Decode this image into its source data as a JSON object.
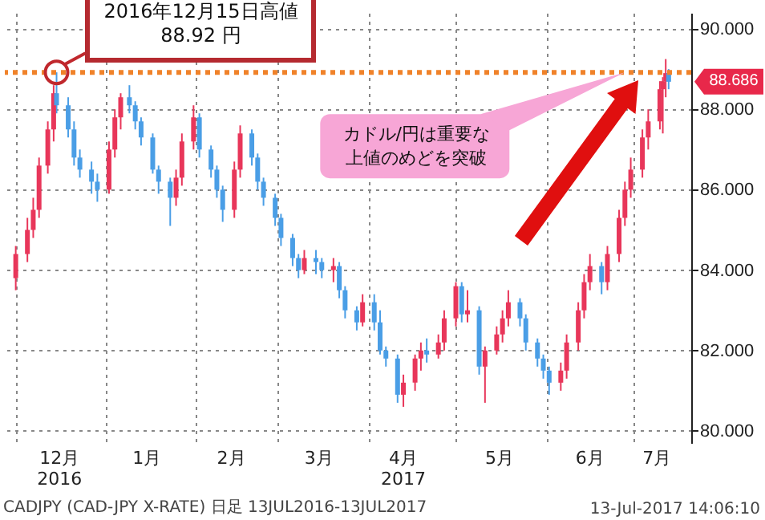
{
  "chart_data": {
    "type": "candlestick",
    "x": [
      "2016-12-01",
      "2016-12-05",
      "2016-12-07",
      "2016-12-09",
      "2016-12-12",
      "2016-12-14",
      "2016-12-15",
      "2016-12-19",
      "2016-12-21",
      "2016-12-23",
      "2016-12-27",
      "2016-12-29",
      "2017-01-02",
      "2017-01-04",
      "2017-01-06",
      "2017-01-09",
      "2017-01-11",
      "2017-01-13",
      "2017-01-17",
      "2017-01-19",
      "2017-01-23",
      "2017-01-25",
      "2017-01-27",
      "2017-01-31",
      "2017-02-02",
      "2017-02-06",
      "2017-02-08",
      "2017-02-10",
      "2017-02-14",
      "2017-02-16",
      "2017-02-20",
      "2017-02-22",
      "2017-02-24",
      "2017-02-28",
      "2017-03-02",
      "2017-03-06",
      "2017-03-08",
      "2017-03-10",
      "2017-03-14",
      "2017-03-16",
      "2017-03-20",
      "2017-03-22",
      "2017-03-24",
      "2017-03-28",
      "2017-03-30",
      "2017-04-03",
      "2017-04-05",
      "2017-04-07",
      "2017-04-11",
      "2017-04-13",
      "2017-04-17",
      "2017-04-19",
      "2017-04-21",
      "2017-04-25",
      "2017-04-27",
      "2017-05-01",
      "2017-05-03",
      "2017-05-05",
      "2017-05-09",
      "2017-05-11",
      "2017-05-15",
      "2017-05-17",
      "2017-05-19",
      "2017-05-23",
      "2017-05-25",
      "2017-05-29",
      "2017-05-31",
      "2017-06-02",
      "2017-06-06",
      "2017-06-08",
      "2017-06-12",
      "2017-06-14",
      "2017-06-16",
      "2017-06-20",
      "2017-06-22",
      "2017-06-26",
      "2017-06-28",
      "2017-06-30",
      "2017-07-04",
      "2017-07-06",
      "2017-07-10",
      "2017-07-11",
      "2017-07-12",
      "2017-07-13"
    ],
    "ohlc": [
      [
        83.8,
        84.6,
        83.5,
        84.4
      ],
      [
        84.4,
        85.3,
        84.2,
        85.0
      ],
      [
        85.0,
        85.8,
        84.8,
        85.5
      ],
      [
        85.5,
        86.8,
        85.3,
        86.6
      ],
      [
        86.6,
        87.7,
        86.4,
        87.5
      ],
      [
        87.5,
        88.6,
        87.2,
        88.4
      ],
      [
        88.4,
        88.92,
        87.9,
        88.1
      ],
      [
        88.1,
        88.3,
        87.3,
        87.5
      ],
      [
        87.5,
        87.7,
        86.6,
        86.8
      ],
      [
        86.8,
        87.0,
        86.3,
        86.5
      ],
      [
        86.5,
        86.7,
        85.9,
        86.2
      ],
      [
        86.2,
        86.4,
        85.7,
        86.0
      ],
      [
        86.0,
        87.2,
        85.9,
        87.0
      ],
      [
        87.0,
        88.0,
        86.8,
        87.8
      ],
      [
        87.8,
        88.4,
        87.5,
        88.3
      ],
      [
        88.3,
        88.6,
        87.9,
        88.1
      ],
      [
        88.1,
        88.2,
        87.5,
        87.7
      ],
      [
        87.7,
        87.8,
        87.1,
        87.3
      ],
      [
        87.3,
        87.4,
        86.4,
        86.5
      ],
      [
        86.5,
        86.6,
        85.9,
        86.2
      ],
      [
        86.2,
        86.3,
        85.1,
        85.8
      ],
      [
        85.8,
        86.5,
        85.6,
        86.3
      ],
      [
        86.3,
        87.4,
        86.1,
        87.2
      ],
      [
        87.2,
        88.1,
        87.0,
        87.8
      ],
      [
        87.8,
        87.9,
        86.8,
        87.0
      ],
      [
        87.0,
        87.1,
        86.3,
        86.5
      ],
      [
        86.5,
        86.6,
        85.8,
        86.0
      ],
      [
        86.0,
        86.1,
        85.2,
        85.5
      ],
      [
        85.5,
        86.7,
        85.3,
        86.5
      ],
      [
        86.5,
        87.6,
        86.3,
        87.4
      ],
      [
        87.4,
        87.5,
        86.6,
        86.8
      ],
      [
        86.8,
        86.9,
        86.0,
        86.2
      ],
      [
        86.2,
        86.3,
        85.6,
        85.8
      ],
      [
        85.8,
        85.9,
        85.1,
        85.3
      ],
      [
        85.3,
        85.4,
        84.6,
        84.8
      ],
      [
        84.8,
        84.9,
        84.1,
        84.3
      ],
      [
        84.3,
        84.4,
        83.8,
        84.0
      ],
      [
        84.0,
        84.5,
        83.9,
        84.3
      ],
      [
        84.3,
        84.5,
        83.9,
        84.2
      ],
      [
        84.2,
        84.3,
        83.8,
        84.0
      ],
      [
        84.0,
        84.3,
        83.7,
        84.1
      ],
      [
        84.1,
        84.2,
        83.3,
        83.5
      ],
      [
        83.5,
        83.6,
        82.8,
        83.0
      ],
      [
        83.0,
        83.1,
        82.5,
        82.7
      ],
      [
        82.7,
        83.4,
        82.6,
        83.2
      ],
      [
        83.2,
        83.4,
        82.5,
        82.7
      ],
      [
        82.7,
        83.0,
        81.9,
        82.0
      ],
      [
        82.0,
        82.1,
        81.6,
        81.8
      ],
      [
        81.8,
        81.9,
        80.7,
        80.9
      ],
      [
        80.9,
        81.4,
        80.6,
        81.2
      ],
      [
        81.2,
        81.9,
        81.0,
        81.8
      ],
      [
        81.8,
        82.2,
        81.5,
        82.0
      ],
      [
        82.0,
        82.3,
        81.7,
        81.9
      ],
      [
        81.9,
        82.4,
        81.8,
        82.2
      ],
      [
        82.2,
        83.0,
        82.0,
        82.8
      ],
      [
        82.8,
        83.7,
        82.6,
        83.6
      ],
      [
        83.6,
        83.7,
        82.7,
        82.9
      ],
      [
        82.9,
        83.5,
        82.7,
        83.0
      ],
      [
        83.0,
        83.1,
        81.4,
        81.6
      ],
      [
        81.6,
        82.1,
        80.7,
        82.0
      ],
      [
        82.0,
        82.6,
        81.9,
        82.4
      ],
      [
        82.4,
        83.0,
        82.2,
        82.8
      ],
      [
        82.8,
        83.5,
        82.6,
        83.2
      ],
      [
        83.2,
        83.3,
        82.6,
        82.8
      ],
      [
        82.8,
        82.9,
        82.0,
        82.2
      ],
      [
        82.2,
        82.3,
        81.6,
        81.8
      ],
      [
        81.8,
        81.9,
        81.3,
        81.5
      ],
      [
        81.5,
        81.6,
        80.9,
        81.2
      ],
      [
        81.2,
        81.7,
        81.0,
        81.5
      ],
      [
        81.5,
        82.4,
        81.3,
        82.2
      ],
      [
        82.2,
        83.2,
        82.0,
        83.0
      ],
      [
        83.0,
        83.9,
        82.8,
        83.7
      ],
      [
        83.7,
        84.4,
        83.5,
        84.1
      ],
      [
        84.1,
        84.2,
        83.4,
        83.7
      ],
      [
        83.7,
        84.6,
        83.5,
        84.4
      ],
      [
        84.4,
        85.5,
        84.2,
        85.3
      ],
      [
        85.3,
        86.2,
        85.1,
        86.0
      ],
      [
        86.0,
        86.8,
        85.8,
        86.5
      ],
      [
        86.5,
        87.5,
        86.3,
        87.3
      ],
      [
        87.3,
        88.0,
        87.0,
        87.7
      ],
      [
        87.7,
        88.7,
        87.5,
        88.5
      ],
      [
        88.5,
        88.8,
        87.4,
        88.7
      ],
      [
        88.7,
        89.25,
        88.3,
        88.9
      ],
      [
        88.9,
        89.0,
        88.5,
        88.686
      ]
    ],
    "colors": [
      "#e8365a",
      "#e8365a",
      "#e8365a",
      "#e8365a",
      "#e8365a",
      "#e8365a",
      "#4a9ee6",
      "#4a9ee6",
      "#4a9ee6",
      "#4a9ee6",
      "#4a9ee6",
      "#4a9ee6",
      "#e8365a",
      "#e8365a",
      "#e8365a",
      "#4a9ee6",
      "#4a9ee6",
      "#4a9ee6",
      "#4a9ee6",
      "#4a9ee6",
      "#4a9ee6",
      "#e8365a",
      "#e8365a",
      "#e8365a",
      "#4a9ee6",
      "#4a9ee6",
      "#4a9ee6",
      "#4a9ee6",
      "#e8365a",
      "#e8365a",
      "#4a9ee6",
      "#4a9ee6",
      "#4a9ee6",
      "#4a9ee6",
      "#4a9ee6",
      "#4a9ee6",
      "#4a9ee6",
      "#e8365a",
      "#4a9ee6",
      "#4a9ee6",
      "#e8365a",
      "#4a9ee6",
      "#4a9ee6",
      "#4a9ee6",
      "#e8365a",
      "#4a9ee6",
      "#4a9ee6",
      "#4a9ee6",
      "#4a9ee6",
      "#e8365a",
      "#e8365a",
      "#e8365a",
      "#4a9ee6",
      "#e8365a",
      "#e8365a",
      "#e8365a",
      "#4a9ee6",
      "#e8365a",
      "#4a9ee6",
      "#e8365a",
      "#e8365a",
      "#e8365a",
      "#e8365a",
      "#4a9ee6",
      "#4a9ee6",
      "#4a9ee6",
      "#4a9ee6",
      "#4a9ee6",
      "#e8365a",
      "#e8365a",
      "#e8365a",
      "#e8365a",
      "#e8365a",
      "#4a9ee6",
      "#e8365a",
      "#e8365a",
      "#e8365a",
      "#e8365a",
      "#e8365a",
      "#e8365a",
      "#e8365a",
      "#e8365a",
      "#e8365a",
      "#4a9ee6"
    ],
    "xlim": [
      "2016-11-30",
      "2017-07-18"
    ],
    "xticks": [
      {
        "value": "2016-12-01",
        "label": null
      },
      {
        "value": "2016-12-16",
        "label": "12月\n2016"
      },
      {
        "value": "2017-01-01",
        "label": null
      },
      {
        "value": "2017-01-15",
        "label": "1月"
      },
      {
        "value": "2017-02-01",
        "label": null
      },
      {
        "value": "2017-02-13",
        "label": "2月"
      },
      {
        "value": "2017-03-01",
        "label": null
      },
      {
        "value": "2017-03-15",
        "label": "3月"
      },
      {
        "value": "2017-04-01",
        "label": null
      },
      {
        "value": "2017-04-13",
        "label": "4月\n2017"
      },
      {
        "value": "2017-05-01",
        "label": null
      },
      {
        "value": "2017-05-16",
        "label": "5月"
      },
      {
        "value": "2017-06-01",
        "label": null
      },
      {
        "value": "2017-06-16",
        "label": "6月"
      },
      {
        "value": "2017-07-01",
        "label": null
      },
      {
        "value": "2017-07-09",
        "label": "7月"
      }
    ],
    "ylim": [
      79.7,
      90.4
    ],
    "yticks": [
      {
        "value": 80,
        "label": "80.000"
      },
      {
        "value": 82,
        "label": "82.000"
      },
      {
        "value": 84,
        "label": "84.000"
      },
      {
        "value": 86,
        "label": "86.000"
      },
      {
        "value": 88,
        "label": "88.000"
      },
      {
        "value": 90,
        "label": "90.000"
      }
    ],
    "grid": true,
    "ref_lines": [
      {
        "axis": "y",
        "value": 88.92,
        "color": "#f0822a",
        "line_style": "dotted"
      }
    ],
    "annotations": [
      {
        "text": "2016年12月15日高値\n88.92 円",
        "x": "2016-12-15",
        "y": 88.92
      },
      {
        "text": "カドル/円は重要な上値のめどを突破",
        "x": "2017-06-28",
        "y": 88.92
      },
      "88.686",
      "CADJPY (CAD-JPY X-RATE) 日足 13JUL2016-13JUL2017",
      "13-Jul-2017 14:06:10"
    ]
  }
}
